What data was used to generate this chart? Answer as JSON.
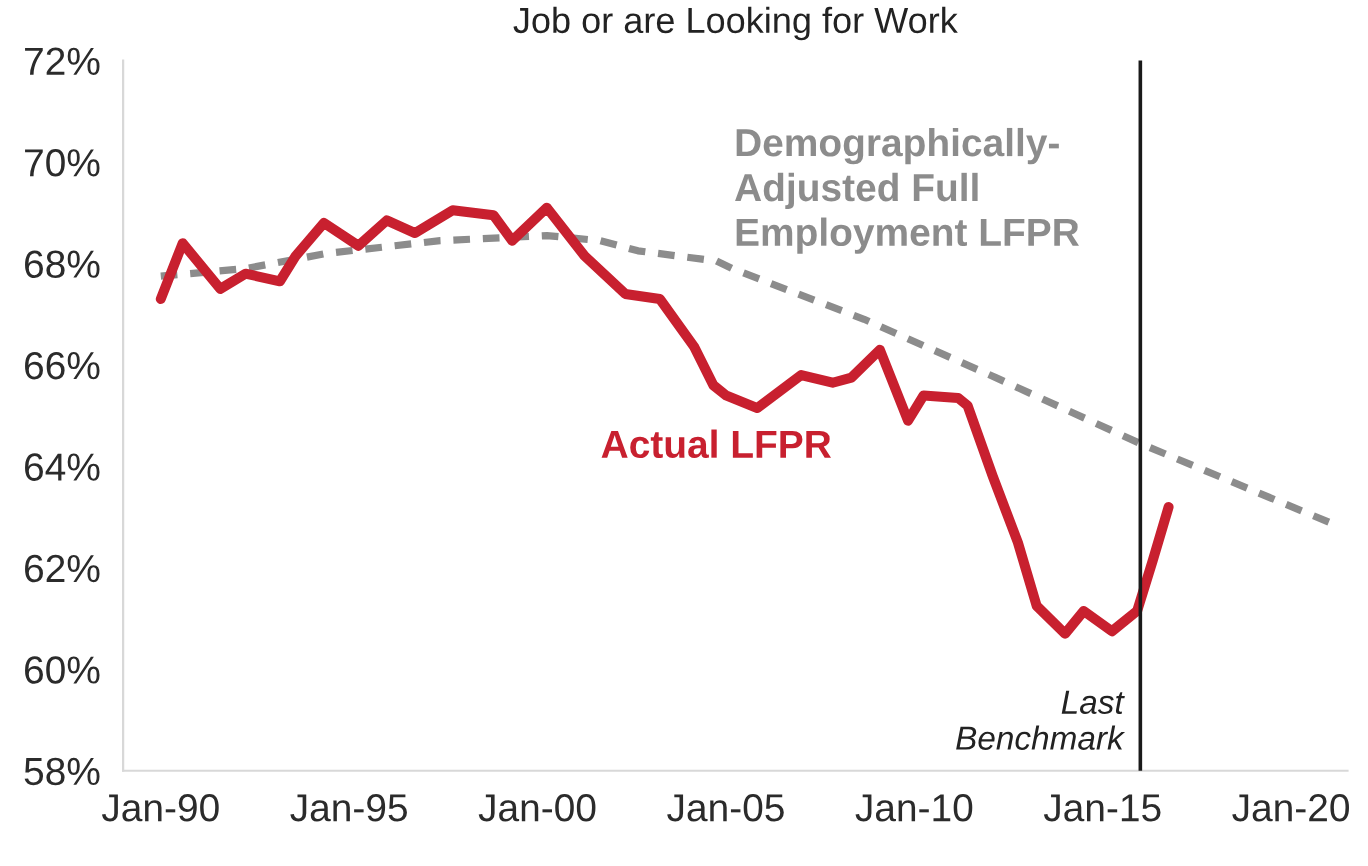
{
  "chart_data": {
    "type": "line",
    "title": "Job or are Looking for Work",
    "series": [
      {
        "name": "Actual LFPR",
        "color": "#c8202f",
        "line_style": "solid",
        "x": [
          "1990-01",
          "1990-08",
          "1991-08",
          "1992-04",
          "1993-03",
          "1993-08",
          "1994-05",
          "1995-04",
          "1996-01",
          "1996-10",
          "1997-10",
          "1998-11",
          "1999-05",
          "2000-04",
          "2001-04",
          "2002-05",
          "2003-04",
          "2004-03",
          "2004-09",
          "2005-01",
          "2005-11",
          "2007-01",
          "2007-11",
          "2008-05",
          "2009-02",
          "2009-11",
          "2010-04",
          "2011-03",
          "2011-06",
          "2012-02",
          "2012-10",
          "2013-04",
          "2014-01",
          "2014-07",
          "2015-04",
          "2015-12",
          "2016-05",
          "2016-10"
        ],
        "values": [
          67.3,
          68.4,
          67.5,
          67.8,
          67.65,
          68.15,
          68.8,
          68.35,
          68.85,
          68.6,
          69.05,
          68.95,
          68.45,
          69.1,
          68.15,
          67.4,
          67.3,
          66.35,
          65.6,
          65.4,
          65.15,
          65.8,
          65.65,
          65.75,
          66.3,
          64.9,
          65.4,
          65.35,
          65.2,
          63.8,
          62.5,
          61.25,
          60.7,
          61.15,
          60.75,
          61.15,
          62.15,
          63.2
        ]
      },
      {
        "name": "Demographically-\nAdjusted Full\nEmployment LFPR",
        "color": "#8c8c8c",
        "line_style": "dashed",
        "x": [
          "1990-01",
          "1992-04",
          "1994-06",
          "1997-06",
          "2000-04",
          "2001-09",
          "2002-09",
          "2004-10",
          "2005-03",
          "2008-09",
          "2012-03",
          "2016-01",
          "2021-01"
        ],
        "values": [
          67.75,
          67.9,
          68.2,
          68.45,
          68.55,
          68.45,
          68.25,
          68.05,
          67.9,
          66.9,
          65.75,
          64.45,
          62.9
        ]
      }
    ],
    "xlim": [
      "1989-01",
      "2021-07"
    ],
    "xticks": [
      {
        "value": "1990-01",
        "label": "Jan-90"
      },
      {
        "value": "1995-01",
        "label": "Jan-95"
      },
      {
        "value": "2000-01",
        "label": "Jan-00"
      },
      {
        "value": "2005-01",
        "label": "Jan-05"
      },
      {
        "value": "2010-01",
        "label": "Jan-10"
      },
      {
        "value": "2015-01",
        "label": "Jan-15"
      },
      {
        "value": "2020-01",
        "label": "Jan-20"
      }
    ],
    "ylim": [
      58,
      72
    ],
    "yticks": [
      {
        "value": 58,
        "label": "58%"
      },
      {
        "value": 60,
        "label": "60%"
      },
      {
        "value": 62,
        "label": "62%"
      },
      {
        "value": 64,
        "label": "64%"
      },
      {
        "value": 66,
        "label": "66%"
      },
      {
        "value": 68,
        "label": "68%"
      },
      {
        "value": 70,
        "label": "70%"
      },
      {
        "value": 72,
        "label": "72%"
      }
    ],
    "ref_lines": [
      {
        "axis": "x",
        "value": "2016-01",
        "label": "Last\nBenchmark",
        "color": "#1a1a1a"
      }
    ]
  }
}
